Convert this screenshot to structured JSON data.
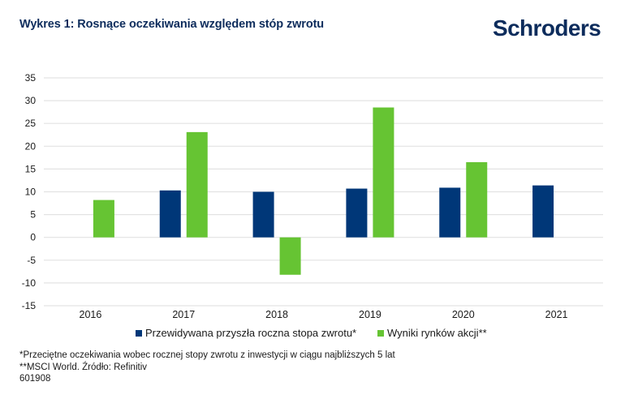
{
  "header": {
    "title": "Wykres 1: Rosnące oczekiwania względem stóp zwrotu",
    "brand": "Schroders"
  },
  "colors": {
    "series_expected": "#003778",
    "series_market": "#66c433",
    "grid": "#e3e3e3",
    "title": "#0d2c5c"
  },
  "chart_data": {
    "type": "bar",
    "title": "Wykres 1: Rosnące oczekiwania względem stóp zwrotu",
    "xlabel": "",
    "ylabel": "",
    "categories": [
      "2016",
      "2017",
      "2018",
      "2019",
      "2020",
      "2021"
    ],
    "series": [
      {
        "name": "Przewidywana przyszła roczna stopa zwrotu*",
        "color": "#003778",
        "values": [
          null,
          10.3,
          10.0,
          10.7,
          10.9,
          11.4
        ]
      },
      {
        "name": "Wyniki rynków akcji**",
        "color": "#66c433",
        "values": [
          8.2,
          23.1,
          -8.2,
          28.5,
          16.5,
          null
        ]
      }
    ],
    "ylim": [
      -15,
      35
    ],
    "yticks": [
      35,
      30,
      25,
      20,
      15,
      10,
      5,
      0,
      -5,
      -10,
      -15
    ],
    "ytick_labels": [
      "35",
      "30",
      "25",
      "20",
      "15",
      "10",
      "5",
      "0",
      "-5",
      "-10",
      "-15"
    ],
    "grid": true,
    "legend_position": "bottom"
  },
  "legend": [
    {
      "label": "Przewidywana przyszła roczna stopa zwrotu*"
    },
    {
      "label": "Wyniki rynków akcji**"
    }
  ],
  "footnotes": {
    "line1": "*Przeciętne oczekiwania wobec rocznej stopy zwrotu z inwestycji w ciągu najbliższych 5 lat",
    "line2": "**MSCI World. Źródło: Refinitiv",
    "line3": "601908"
  }
}
